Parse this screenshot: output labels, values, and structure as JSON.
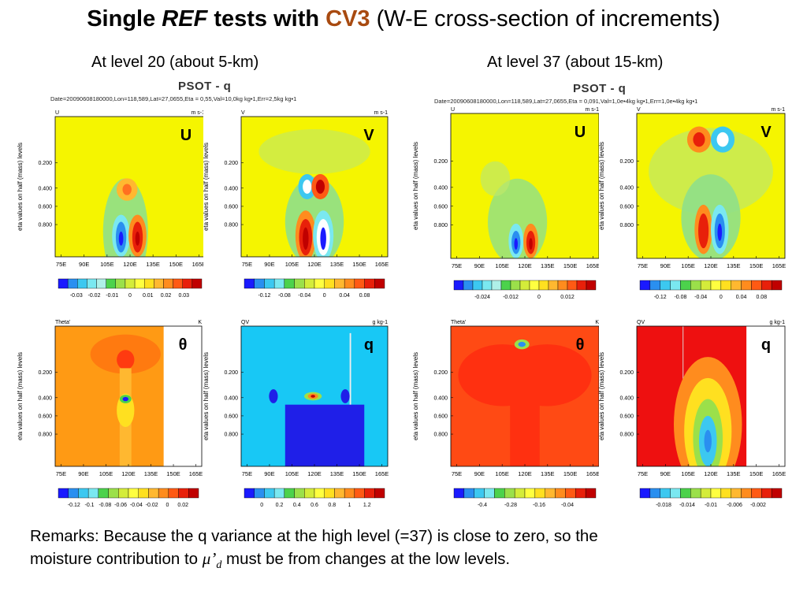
{
  "header": {
    "title_1": "Single ",
    "title_ref": "REF",
    "title_2": " tests with ",
    "title_cv3": "CV3",
    "title_3": " (W-E cross-section of increments)",
    "left_heading": "At level 20 (about 5-km)",
    "right_heading": "At level 37 (about 15-km)"
  },
  "figure_titles": {
    "left": "PSOT - q",
    "right": "PSOT - q"
  },
  "figure_info": {
    "left": "Date=20090608180000,Lon=118,589,Lat=27,0655,Eta = 0,55,Val=10,0kg kg•1,Err=2,5kg kg•1",
    "right": "Date=20090608180000,Lon=118,589,Lat=27,0655,Eta = 0,091,Val=1,0e•4kg kg•1,Err=1,0e•4kg kg•1"
  },
  "axis_common": {
    "ylabel": "eta values on half (mass) levels",
    "yticks": [
      "0.200",
      "0.400",
      "0.600",
      "0.800"
    ],
    "xticks": [
      "75E",
      "90E",
      "105E",
      "120E",
      "135E",
      "150E",
      "165E"
    ]
  },
  "remarks": {
    "line1": "Remarks: Because the q variance at the high level (=37) is close to zero, so the",
    "line2_a": "moisture contribution to ",
    "mu": "μ’",
    "mu_sub": "d",
    "line2_b": " must be from changes at the low levels."
  },
  "chart_data": [
    {
      "type": "heatmap",
      "id": "p1",
      "var_label": "U",
      "units": "m s-1",
      "panel_label": "U",
      "bg": "#f5f500",
      "colorbar": {
        "labels": [
          "-0.03",
          "-0.02",
          "-0.01",
          "0",
          "0.01",
          "0.02",
          "0.03"
        ],
        "colors": [
          "#1a1aff",
          "#2a8ff0",
          "#3cc8f0",
          "#7ae8f0",
          "#aff0e8",
          "#4cd24c",
          "#9be04a",
          "#d4ec3a",
          "#ffff40",
          "#ffe020",
          "#ffb830",
          "#ff8c1e",
          "#ff5a14",
          "#e8200a",
          "#c00000"
        ]
      }
    },
    {
      "type": "heatmap",
      "id": "p2",
      "var_label": "V",
      "units": "m s-1",
      "panel_label": "V",
      "bg": "#f5f500",
      "colorbar": {
        "labels": [
          "-0.12",
          "-0.08",
          "-0.04",
          "0",
          "0.04",
          "0.08"
        ],
        "colors": [
          "#1a1aff",
          "#2a8ff0",
          "#3cc8f0",
          "#7ae8f0",
          "#4cd24c",
          "#9be04a",
          "#d4ec3a",
          "#ffff40",
          "#ffe020",
          "#ffb830",
          "#ff8c1e",
          "#ff5a14",
          "#e8200a",
          "#c00000"
        ]
      }
    },
    {
      "type": "heatmap",
      "id": "p3",
      "var_label": "U",
      "units": "m s-1",
      "panel_label": "U",
      "bg": "#f5f500",
      "colorbar": {
        "labels": [
          "-0.024",
          "-0.012",
          "0",
          "0.012"
        ],
        "colors": [
          "#1a1aff",
          "#2a8ff0",
          "#3cc8f0",
          "#7ae8f0",
          "#aff0e8",
          "#4cd24c",
          "#9be04a",
          "#d4ec3a",
          "#ffff40",
          "#ffe020",
          "#ffb830",
          "#ff8c1e",
          "#ff5a14",
          "#e8200a",
          "#c00000"
        ]
      }
    },
    {
      "type": "heatmap",
      "id": "p4",
      "var_label": "V",
      "units": "m s-1",
      "panel_label": "V",
      "bg": "#f5f500",
      "colorbar": {
        "labels": [
          "-0.12",
          "-0.08",
          "-0.04",
          "0",
          "0.04",
          "0.08"
        ],
        "colors": [
          "#1a1aff",
          "#2a8ff0",
          "#3cc8f0",
          "#7ae8f0",
          "#4cd24c",
          "#9be04a",
          "#d4ec3a",
          "#ffff40",
          "#ffe020",
          "#ffb830",
          "#ff8c1e",
          "#ff5a14",
          "#e8200a",
          "#c00000"
        ]
      }
    },
    {
      "type": "heatmap",
      "id": "p5",
      "var_label": "Theta'",
      "units": "K",
      "panel_label": "θ",
      "bg": "#ff9a14",
      "colorbar": {
        "labels": [
          "-0.12",
          "-0.1",
          "-0.08",
          "-0.06",
          "-0.04",
          "-0.02",
          "0",
          "0.02"
        ],
        "colors": [
          "#1a1aff",
          "#2a8ff0",
          "#3cc8f0",
          "#7ae8f0",
          "#4cd24c",
          "#9be04a",
          "#d4ec3a",
          "#ffff40",
          "#ffe020",
          "#ffb830",
          "#ff8c1e",
          "#ff5a14",
          "#e8200a",
          "#c00000"
        ]
      }
    },
    {
      "type": "heatmap",
      "id": "p6",
      "var_label": "QV",
      "units": "g kg-1",
      "panel_label": "q",
      "bg": "#18c8f5",
      "colorbar": {
        "labels": [
          "0",
          "0.2",
          "0.4",
          "0.6",
          "0.8",
          "1",
          "1.2"
        ],
        "colors": [
          "#1a1aff",
          "#2a8ff0",
          "#3cc8f0",
          "#7ae8f0",
          "#4cd24c",
          "#9be04a",
          "#d4ec3a",
          "#ffff40",
          "#ffe020",
          "#ffb830",
          "#ff8c1e",
          "#ff5a14",
          "#e8200a",
          "#c00000"
        ]
      }
    },
    {
      "type": "heatmap",
      "id": "p7",
      "var_label": "Theta'",
      "units": "K",
      "panel_label": "θ",
      "bg": "#ff4a14",
      "colorbar": {
        "labels": [
          "-0.4",
          "-0.28",
          "-0.16",
          "-0.04"
        ],
        "colors": [
          "#1a1aff",
          "#2a8ff0",
          "#3cc8f0",
          "#7ae8f0",
          "#4cd24c",
          "#9be04a",
          "#d4ec3a",
          "#ffff40",
          "#ffe020",
          "#ffb830",
          "#ff8c1e",
          "#ff5a14",
          "#e8200a",
          "#c00000"
        ]
      }
    },
    {
      "type": "heatmap",
      "id": "p8",
      "var_label": "QV",
      "units": "g kg-1",
      "panel_label": "q",
      "bg": "#ee1010",
      "colorbar": {
        "labels": [
          "-0.018",
          "-0.014",
          "-0.01",
          "-0.006",
          "-0.002"
        ],
        "colors": [
          "#1a1aff",
          "#2a8ff0",
          "#3cc8f0",
          "#7ae8f0",
          "#4cd24c",
          "#9be04a",
          "#d4ec3a",
          "#ffff40",
          "#ffe020",
          "#ffb830",
          "#ff8c1e",
          "#ff5a14",
          "#e8200a",
          "#c00000"
        ]
      }
    }
  ]
}
